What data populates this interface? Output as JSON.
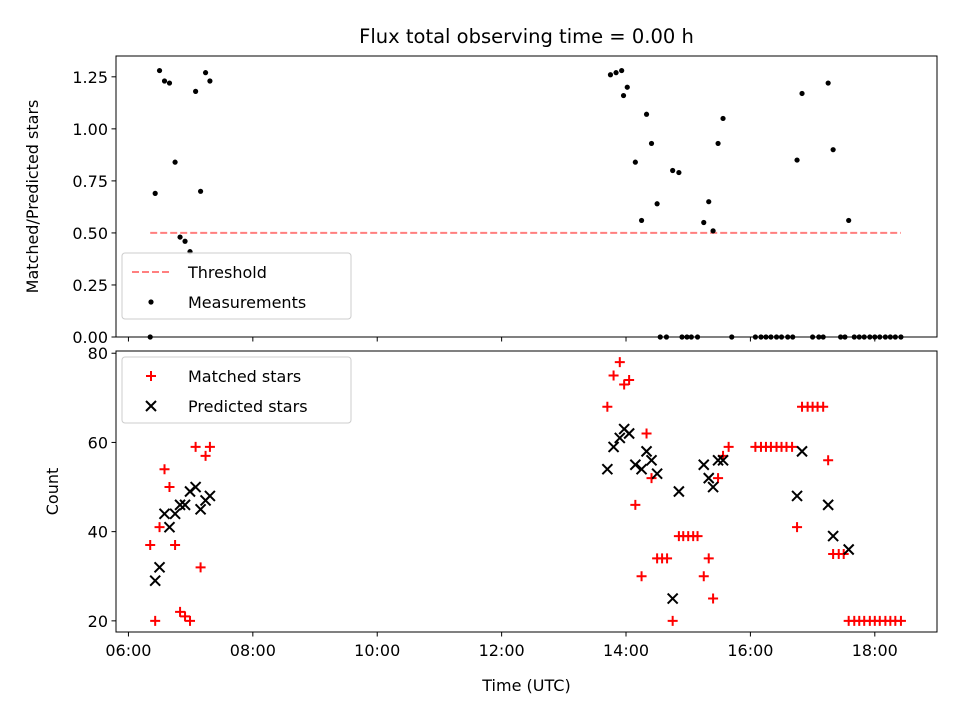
{
  "chart_data": [
    {
      "type": "scatter",
      "title": "Flux total observing time = 0.00 h",
      "xlabel": "",
      "ylabel": "Matched/Predicted stars",
      "xlim": [
        5.8,
        19.0
      ],
      "ylim": [
        0.0,
        1.35
      ],
      "yticks": [
        0.0,
        0.25,
        0.5,
        0.75,
        1.0,
        1.25
      ],
      "ytick_labels": [
        "0.00",
        "0.25",
        "0.50",
        "0.75",
        "1.00",
        "1.25"
      ],
      "xticks": [
        6,
        8,
        10,
        12,
        14,
        16,
        18
      ],
      "show_xtick_labels": false,
      "legend": {
        "position": "lower-left",
        "entries": [
          "Threshold",
          "Measurements"
        ]
      },
      "threshold": {
        "name": "Threshold",
        "value": 0.5,
        "x": [
          6.35,
          18.42
        ],
        "color": "#ff7f7f",
        "style": "dashed"
      },
      "series": [
        {
          "name": "Measurements",
          "marker": "dot",
          "color": "#000000",
          "points": [
            [
              6.35,
              0.0
            ],
            [
              6.43,
              0.69
            ],
            [
              6.5,
              1.28
            ],
            [
              6.58,
              1.23
            ],
            [
              6.66,
              1.22
            ],
            [
              6.75,
              0.84
            ],
            [
              6.83,
              0.48
            ],
            [
              6.91,
              0.46
            ],
            [
              6.99,
              0.41
            ],
            [
              7.08,
              1.18
            ],
            [
              7.16,
              0.7
            ],
            [
              7.24,
              1.27
            ],
            [
              7.31,
              1.23
            ],
            [
              13.75,
              1.26
            ],
            [
              13.84,
              1.27
            ],
            [
              13.93,
              1.28
            ],
            [
              13.96,
              1.16
            ],
            [
              14.02,
              1.2
            ],
            [
              14.15,
              0.84
            ],
            [
              14.25,
              0.56
            ],
            [
              14.33,
              1.07
            ],
            [
              14.41,
              0.93
            ],
            [
              14.5,
              0.64
            ],
            [
              14.55,
              0.0
            ],
            [
              14.65,
              0.0
            ],
            [
              14.75,
              0.8
            ],
            [
              14.85,
              0.79
            ],
            [
              14.9,
              0.0
            ],
            [
              14.98,
              0.0
            ],
            [
              15.05,
              0.0
            ],
            [
              15.15,
              0.0
            ],
            [
              15.25,
              0.55
            ],
            [
              15.33,
              0.65
            ],
            [
              15.4,
              0.51
            ],
            [
              15.48,
              0.93
            ],
            [
              15.56,
              1.05
            ],
            [
              15.7,
              0.0
            ],
            [
              16.08,
              0.0
            ],
            [
              16.17,
              0.0
            ],
            [
              16.25,
              0.0
            ],
            [
              16.33,
              0.0
            ],
            [
              16.42,
              0.0
            ],
            [
              16.5,
              0.0
            ],
            [
              16.6,
              0.0
            ],
            [
              16.68,
              0.0
            ],
            [
              16.75,
              0.85
            ],
            [
              16.83,
              1.17
            ],
            [
              17.0,
              0.0
            ],
            [
              17.1,
              0.0
            ],
            [
              17.17,
              0.0
            ],
            [
              17.25,
              1.22
            ],
            [
              17.33,
              0.9
            ],
            [
              17.45,
              0.0
            ],
            [
              17.52,
              0.0
            ],
            [
              17.58,
              0.56
            ],
            [
              17.67,
              0.0
            ],
            [
              17.75,
              0.0
            ],
            [
              17.83,
              0.0
            ],
            [
              17.92,
              0.0
            ],
            [
              18.0,
              0.0
            ],
            [
              18.08,
              0.0
            ],
            [
              18.17,
              0.0
            ],
            [
              18.25,
              0.0
            ],
            [
              18.33,
              0.0
            ],
            [
              18.42,
              0.0
            ]
          ]
        }
      ]
    },
    {
      "type": "scatter",
      "title": "",
      "xlabel": "Time (UTC)",
      "ylabel": "Count",
      "xlim": [
        5.8,
        19.0
      ],
      "ylim": [
        17.5,
        80.5
      ],
      "yticks": [
        20,
        40,
        60,
        80
      ],
      "ytick_labels": [
        "20",
        "40",
        "60",
        "80"
      ],
      "xticks": [
        6,
        8,
        10,
        12,
        14,
        16,
        18
      ],
      "xtick_labels": [
        "06:00",
        "08:00",
        "10:00",
        "12:00",
        "14:00",
        "16:00",
        "18:00"
      ],
      "legend": {
        "position": "top-left",
        "entries": [
          "Matched stars",
          "Predicted stars"
        ]
      },
      "series": [
        {
          "name": "Matched stars",
          "marker": "plus",
          "color": "#ff0000",
          "points": [
            [
              6.35,
              37
            ],
            [
              6.43,
              20
            ],
            [
              6.5,
              41
            ],
            [
              6.58,
              54
            ],
            [
              6.66,
              50
            ],
            [
              6.75,
              37
            ],
            [
              6.83,
              22
            ],
            [
              6.91,
              21
            ],
            [
              6.99,
              20
            ],
            [
              7.08,
              59
            ],
            [
              7.16,
              32
            ],
            [
              7.24,
              57
            ],
            [
              7.31,
              59
            ],
            [
              13.7,
              68
            ],
            [
              13.8,
              75
            ],
            [
              13.9,
              78
            ],
            [
              13.97,
              73
            ],
            [
              14.05,
              74
            ],
            [
              14.15,
              46
            ],
            [
              14.25,
              30
            ],
            [
              14.33,
              62
            ],
            [
              14.41,
              52
            ],
            [
              14.5,
              34
            ],
            [
              14.58,
              34
            ],
            [
              14.66,
              34
            ],
            [
              14.75,
              20
            ],
            [
              14.85,
              39
            ],
            [
              14.92,
              39
            ],
            [
              15.0,
              39
            ],
            [
              15.08,
              39
            ],
            [
              15.15,
              39
            ],
            [
              15.25,
              30
            ],
            [
              15.33,
              34
            ],
            [
              15.4,
              25
            ],
            [
              15.48,
              52
            ],
            [
              15.56,
              57
            ],
            [
              15.65,
              59
            ],
            [
              16.08,
              59
            ],
            [
              16.17,
              59
            ],
            [
              16.25,
              59
            ],
            [
              16.33,
              59
            ],
            [
              16.42,
              59
            ],
            [
              16.5,
              59
            ],
            [
              16.58,
              59
            ],
            [
              16.67,
              59
            ],
            [
              16.75,
              41
            ],
            [
              16.83,
              68
            ],
            [
              16.92,
              68
            ],
            [
              17.0,
              68
            ],
            [
              17.08,
              68
            ],
            [
              17.17,
              68
            ],
            [
              17.25,
              56
            ],
            [
              17.33,
              35
            ],
            [
              17.42,
              35
            ],
            [
              17.5,
              35
            ],
            [
              17.58,
              20
            ],
            [
              17.67,
              20
            ],
            [
              17.75,
              20
            ],
            [
              17.83,
              20
            ],
            [
              17.92,
              20
            ],
            [
              18.0,
              20
            ],
            [
              18.08,
              20
            ],
            [
              18.17,
              20
            ],
            [
              18.25,
              20
            ],
            [
              18.33,
              20
            ],
            [
              18.42,
              20
            ]
          ]
        },
        {
          "name": "Predicted stars",
          "marker": "x",
          "color": "#000000",
          "points": [
            [
              6.43,
              29
            ],
            [
              6.5,
              32
            ],
            [
              6.58,
              44
            ],
            [
              6.66,
              41
            ],
            [
              6.75,
              44
            ],
            [
              6.83,
              46
            ],
            [
              6.91,
              46
            ],
            [
              6.99,
              49
            ],
            [
              7.08,
              50
            ],
            [
              7.16,
              45
            ],
            [
              7.24,
              47
            ],
            [
              7.31,
              48
            ],
            [
              13.7,
              54
            ],
            [
              13.8,
              59
            ],
            [
              13.9,
              61
            ],
            [
              13.97,
              63
            ],
            [
              14.05,
              62
            ],
            [
              14.15,
              55
            ],
            [
              14.25,
              54
            ],
            [
              14.33,
              58
            ],
            [
              14.41,
              56
            ],
            [
              14.5,
              53
            ],
            [
              14.75,
              25
            ],
            [
              14.85,
              49
            ],
            [
              15.25,
              55
            ],
            [
              15.33,
              52
            ],
            [
              15.4,
              50
            ],
            [
              15.48,
              56
            ],
            [
              15.56,
              56
            ],
            [
              16.83,
              58
            ],
            [
              16.75,
              48
            ],
            [
              17.25,
              46
            ],
            [
              17.33,
              39
            ],
            [
              17.58,
              36
            ]
          ]
        }
      ]
    }
  ]
}
